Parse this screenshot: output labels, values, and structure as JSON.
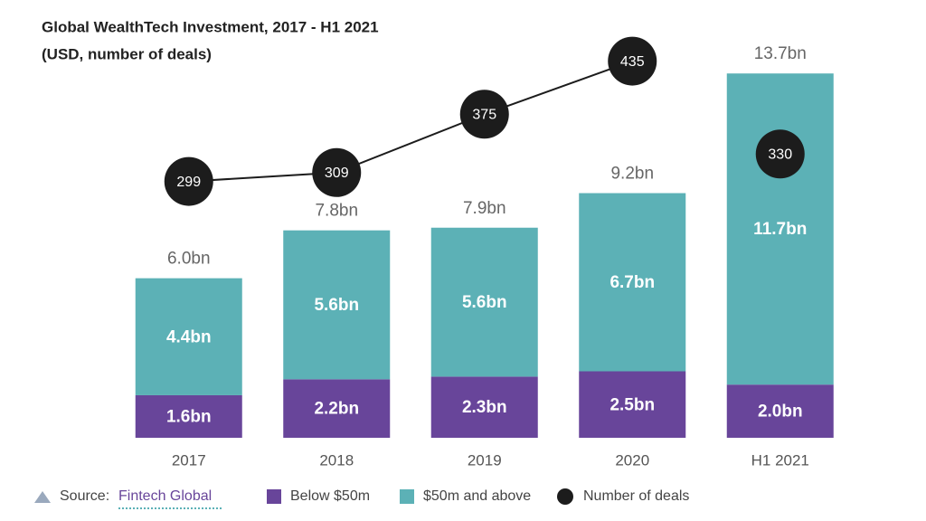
{
  "chart_data": {
    "type": "bar",
    "stacked": true,
    "title": "Global WealthTech Investment, 2017 - H1 2021",
    "subtitle": "(USD, number of deals)",
    "categories": [
      "2017",
      "2018",
      "2019",
      "2020",
      "H1 2021"
    ],
    "series": [
      {
        "name": "Below $50m",
        "color": "#68459a",
        "values": [
          1.6,
          2.2,
          2.3,
          2.5,
          2.0
        ],
        "value_labels": [
          "1.6bn",
          "2.2bn",
          "2.3bn",
          "2.5bn",
          "2.0bn"
        ]
      },
      {
        "name": "$50m and above",
        "color": "#5cb1b6",
        "values": [
          4.4,
          5.6,
          5.6,
          6.7,
          11.7
        ],
        "value_labels": [
          "4.4bn",
          "5.6bn",
          "5.6bn",
          "6.7bn",
          "11.7bn"
        ]
      }
    ],
    "totals": {
      "values": [
        6.0,
        7.8,
        7.9,
        9.2,
        13.7
      ],
      "value_labels": [
        "6.0bn",
        "7.8bn",
        "7.9bn",
        "9.2bn",
        "13.7bn"
      ]
    },
    "line_series": {
      "name": "Number of deals",
      "color": "#1c1c1c",
      "values": [
        299,
        309,
        375,
        435,
        330
      ],
      "connected": [
        true,
        true,
        true,
        true,
        false
      ]
    },
    "source": {
      "label": "Source:",
      "name": "Fintech Global"
    }
  }
}
